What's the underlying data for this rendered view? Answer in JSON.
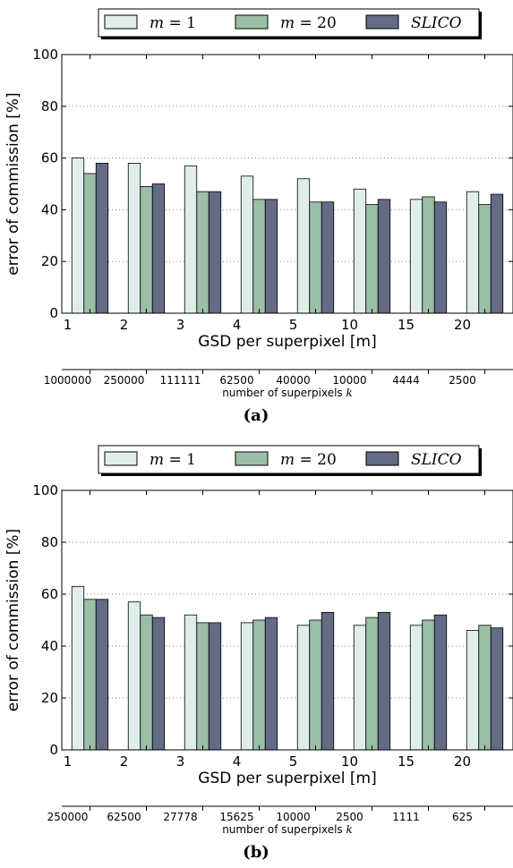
{
  "chart_data": [
    {
      "type": "bar",
      "caption": "(a)",
      "categories": [
        "1",
        "2",
        "3",
        "4",
        "5",
        "10",
        "15",
        "20"
      ],
      "secondary_axis": {
        "label": "number of superpixels k",
        "ticks": [
          "1000000",
          "250000",
          "111111",
          "62500",
          "40000",
          "10000",
          "4444",
          "2500"
        ]
      },
      "xlabel": "GSD per superpixel [m]",
      "ylabel": "error of commission [%]",
      "ylim": [
        0,
        100
      ],
      "yticks": [
        "0",
        "20",
        "40",
        "60",
        "80",
        "100"
      ],
      "grid": true,
      "legend_position": "top-center",
      "series": [
        {
          "name": "m = 1",
          "color": "#dfeeeb",
          "values": [
            60,
            58,
            57,
            53,
            52,
            48,
            44,
            47
          ]
        },
        {
          "name": "m = 20",
          "color": "#9bbfa5",
          "values": [
            54,
            49,
            47,
            44,
            43,
            42,
            45,
            42
          ]
        },
        {
          "name": "SLICO",
          "color": "#636b85",
          "values": [
            58,
            50,
            47,
            44,
            43,
            44,
            43,
            46
          ]
        }
      ]
    },
    {
      "type": "bar",
      "caption": "(b)",
      "categories": [
        "1",
        "2",
        "3",
        "4",
        "5",
        "10",
        "15",
        "20"
      ],
      "secondary_axis": {
        "label": "number of superpixels k",
        "ticks": [
          "250000",
          "62500",
          "27778",
          "15625",
          "10000",
          "2500",
          "1111",
          "625"
        ]
      },
      "xlabel": "GSD per superpixel [m]",
      "ylabel": "error of commission [%]",
      "ylim": [
        0,
        100
      ],
      "yticks": [
        "0",
        "20",
        "40",
        "60",
        "80",
        "100"
      ],
      "grid": true,
      "legend_position": "top-center",
      "series": [
        {
          "name": "m = 1",
          "color": "#dfeeeb",
          "values": [
            63,
            57,
            52,
            49,
            48,
            48,
            48,
            46
          ]
        },
        {
          "name": "m = 20",
          "color": "#9bbfa5",
          "values": [
            58,
            52,
            49,
            50,
            50,
            51,
            50,
            48
          ]
        },
        {
          "name": "SLICO",
          "color": "#636b85",
          "values": [
            58,
            51,
            49,
            51,
            53,
            53,
            52,
            47
          ]
        }
      ]
    }
  ]
}
